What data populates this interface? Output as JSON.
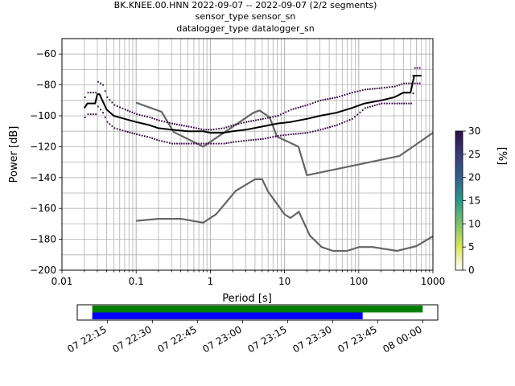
{
  "title": {
    "line1": "BK.KNEE.00.HNN   2022-09-07 -- 2022-09-07  (2/2 segments)",
    "line2": "sensor_type  sensor_sn",
    "line3": "datalogger_type  datalogger_sn"
  },
  "chart_data": {
    "type": "line",
    "title": "BK.KNEE.00.HNN   2022-09-07 -- 2022-09-07  (2/2 segments)",
    "xlabel": "Period [s]",
    "ylabel": "Power [dB]",
    "xscale": "log",
    "xlim": [
      0.01,
      1000
    ],
    "ylim": [
      -200,
      -50
    ],
    "x_ticks": [
      {
        "value": 0.01,
        "label": "0.01"
      },
      {
        "value": 0.1,
        "label": "0.1"
      },
      {
        "value": 1,
        "label": "1"
      },
      {
        "value": 10,
        "label": "10"
      },
      {
        "value": 100,
        "label": "100"
      },
      {
        "value": 1000,
        "label": "1000"
      }
    ],
    "y_ticks": [
      {
        "value": -60,
        "label": "−60"
      },
      {
        "value": -80,
        "label": "−80"
      },
      {
        "value": -100,
        "label": "−100"
      },
      {
        "value": -120,
        "label": "−120"
      },
      {
        "value": -140,
        "label": "−140"
      },
      {
        "value": -160,
        "label": "−160"
      },
      {
        "value": -180,
        "label": "−180"
      },
      {
        "value": -200,
        "label": "−200"
      }
    ],
    "grid": true,
    "series": [
      {
        "role": "nhnm",
        "color": "#666666",
        "x": [
          0.1,
          0.22,
          0.32,
          0.8,
          3.8,
          4.6,
          6.3,
          7.9,
          15.4,
          20,
          354.8,
          1000
        ],
        "y": [
          -91.5,
          -97.4,
          -110.5,
          -120,
          -98,
          -96.5,
          -101,
          -113.5,
          -120,
          -138.5,
          -126,
          -111
        ]
      },
      {
        "role": "nlnm",
        "color": "#666666",
        "x": [
          0.1,
          0.2,
          0.4,
          0.8,
          1.2,
          2.2,
          4,
          5,
          6,
          10,
          12,
          15.6,
          21.9,
          31.6,
          45,
          70,
          101,
          154,
          328,
          600,
          1000
        ],
        "y": [
          -168,
          -166.7,
          -166.7,
          -169.2,
          -163.7,
          -148.6,
          -141.1,
          -141.1,
          -149,
          -163.8,
          -166.2,
          -162.1,
          -177.5,
          -185,
          -187.5,
          -187.5,
          -185,
          -185,
          -187.5,
          -184.4,
          -178
        ]
      },
      {
        "role": "mode",
        "color": "#000000",
        "x": [
          0.02,
          0.022,
          0.028,
          0.03,
          0.032,
          0.035,
          0.04,
          0.05,
          0.07,
          0.1,
          0.15,
          0.2,
          0.3,
          0.5,
          0.8,
          1,
          1.5,
          2,
          3,
          5,
          8,
          12,
          20,
          30,
          50,
          80,
          120,
          200,
          300,
          400,
          500,
          560,
          700
        ],
        "y": [
          -95,
          -92,
          -92,
          -86,
          -86,
          -90,
          -96,
          -100,
          -102,
          -104,
          -106,
          -108,
          -109,
          -110,
          -110,
          -111,
          -111,
          -110,
          -109,
          -107,
          -105,
          -104,
          -102,
          -100,
          -98,
          -95,
          -92,
          -90,
          -88,
          -85,
          -85,
          -74,
          -74
        ]
      },
      {
        "role": "percentile-upper",
        "color": "#3b0a45",
        "x": [
          0.02,
          0.022,
          0.028,
          0.03,
          0.035,
          0.04,
          0.05,
          0.07,
          0.1,
          0.15,
          0.2,
          0.3,
          0.5,
          0.8,
          1,
          1.5,
          2,
          3,
          5,
          8,
          12,
          20,
          30,
          50,
          80,
          120,
          200,
          300,
          400,
          500,
          560,
          700
        ],
        "y": [
          -88,
          -85,
          -85,
          -78,
          -80,
          -88,
          -93,
          -96,
          -99,
          -101,
          -103,
          -105,
          -107,
          -109,
          -109,
          -108,
          -106,
          -104,
          -102,
          -100,
          -96,
          -93,
          -90,
          -88,
          -85,
          -83,
          -82,
          -81,
          -79,
          -79,
          -69,
          -69
        ]
      },
      {
        "role": "percentile-lower",
        "color": "#3b0a45",
        "x": [
          0.02,
          0.022,
          0.028,
          0.03,
          0.035,
          0.04,
          0.05,
          0.07,
          0.1,
          0.15,
          0.2,
          0.3,
          0.5,
          0.8,
          1,
          1.5,
          2,
          3,
          5,
          8,
          12,
          20,
          30,
          50,
          80,
          120,
          200,
          300,
          400,
          500,
          560,
          700
        ],
        "y": [
          -101,
          -99,
          -99,
          -94,
          -98,
          -104,
          -108,
          -110,
          -112,
          -114,
          -116,
          -118,
          -118,
          -118,
          -118,
          -118,
          -117,
          -116,
          -115,
          -113,
          -112,
          -111,
          -109,
          -106,
          -102,
          -95,
          -92,
          -92,
          -92,
          -92,
          -79,
          -79
        ]
      }
    ],
    "colorbar": {
      "label": "[%]",
      "range": [
        0,
        30
      ],
      "ticks": [
        {
          "value": 0,
          "label": "0"
        },
        {
          "value": 5,
          "label": "5"
        },
        {
          "value": 10,
          "label": "10"
        },
        {
          "value": 15,
          "label": "15"
        },
        {
          "value": 20,
          "label": "20"
        },
        {
          "value": 25,
          "label": "25"
        },
        {
          "value": 30,
          "label": "30"
        }
      ],
      "stops": [
        "#ffffff",
        "#d9e85a",
        "#7fc26a",
        "#2a9b8c",
        "#33608d",
        "#3b3a7a",
        "#2f0f4a"
      ]
    },
    "timeline": {
      "range": [
        "2022-09-07 22:05",
        "2022-09-08 00:05"
      ],
      "ticks": [
        {
          "time": "2022-09-07 22:15",
          "label": "07 22:15"
        },
        {
          "time": "2022-09-07 22:30",
          "label": "07 22:30"
        },
        {
          "time": "2022-09-07 22:45",
          "label": "07 22:45"
        },
        {
          "time": "2022-09-07 23:00",
          "label": "07 23:00"
        },
        {
          "time": "2022-09-07 23:15",
          "label": "07 23:15"
        },
        {
          "time": "2022-09-07 23:30",
          "label": "07 23:30"
        },
        {
          "time": "2022-09-07 23:45",
          "label": "07 23:45"
        },
        {
          "time": "2022-09-08 00:00",
          "label": "08 00:00"
        }
      ],
      "bars": [
        {
          "role": "data-coverage",
          "color": "#008000",
          "start": "2022-09-07 22:10",
          "end": "2022-09-08 00:00"
        },
        {
          "role": "psd-coverage",
          "color": "#0000ff",
          "start": "2022-09-07 22:10",
          "end": "2022-09-07 23:40"
        }
      ]
    }
  }
}
